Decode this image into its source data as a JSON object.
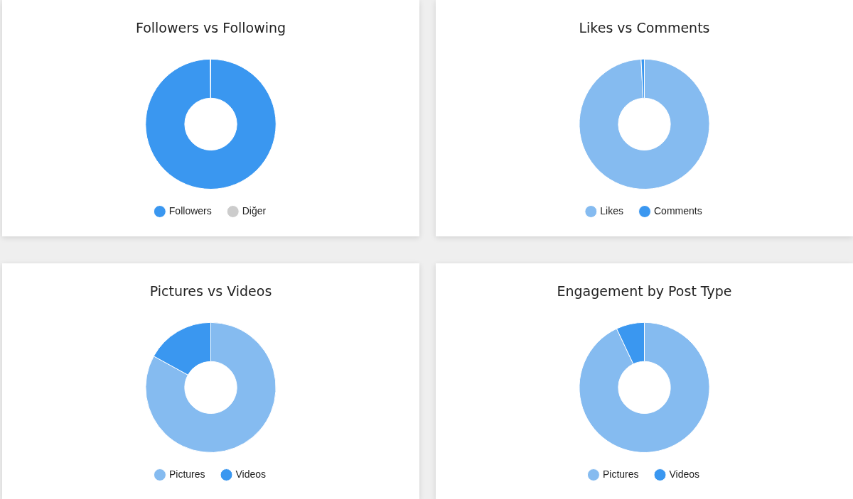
{
  "chart_data": [
    {
      "type": "donut",
      "title": "Followers vs Following",
      "categories": [
        "Followers",
        "Diğer"
      ],
      "values": [
        99.9,
        0.1
      ],
      "colors": [
        "#3a97f0",
        "#cccccc"
      ],
      "legend": "bottom"
    },
    {
      "type": "donut",
      "title": "Likes vs Comments",
      "categories": [
        "Likes",
        "Comments"
      ],
      "values": [
        99.2,
        0.8
      ],
      "colors": [
        "#85bbf0",
        "#3a97f0"
      ],
      "legend": "bottom"
    },
    {
      "type": "donut",
      "title": "Pictures vs Videos",
      "categories": [
        "Pictures",
        "Videos"
      ],
      "values": [
        83,
        17
      ],
      "colors": [
        "#85bbf0",
        "#3a97f0"
      ],
      "legend": "bottom"
    },
    {
      "type": "donut",
      "title": "Engagement by Post Type",
      "categories": [
        "Pictures",
        "Videos"
      ],
      "values": [
        93,
        7
      ],
      "colors": [
        "#85bbf0",
        "#3a97f0"
      ],
      "legend": "bottom"
    }
  ]
}
